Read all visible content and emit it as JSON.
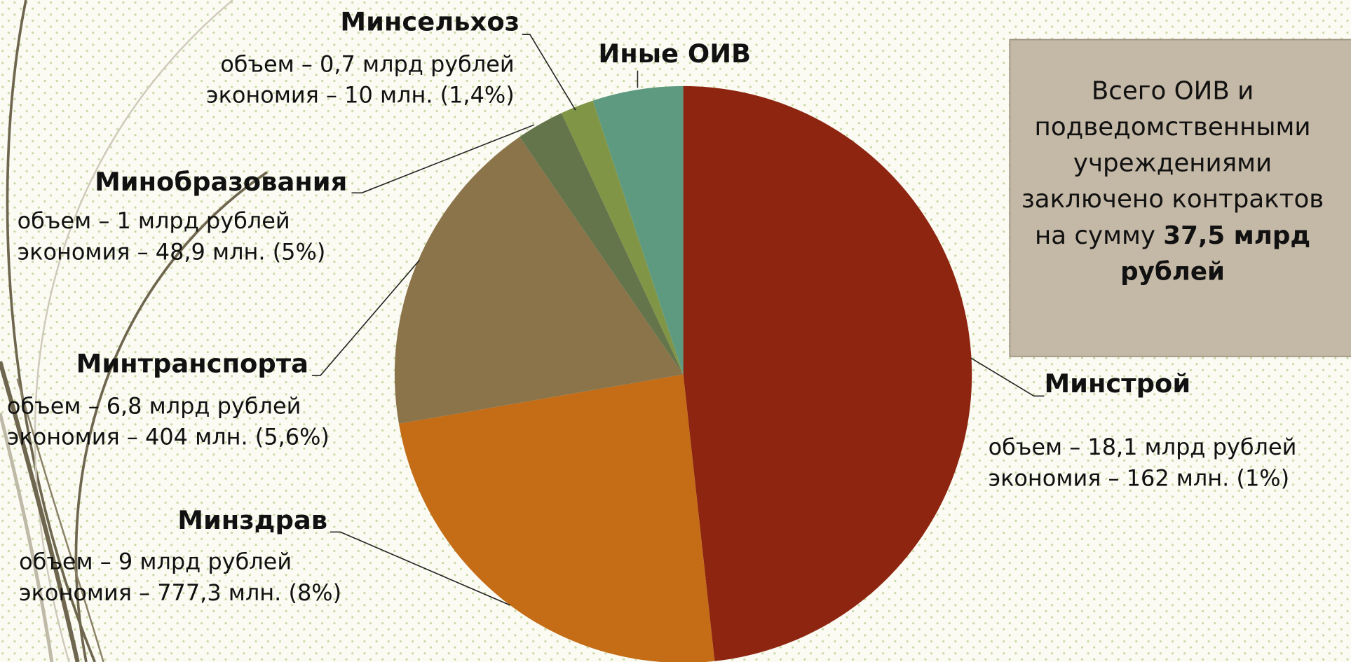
{
  "chart_data": {
    "type": "pie",
    "categories": [
      "Минстрой",
      "Минздрав",
      "Минтранспорта",
      "Минобразования",
      "Минсельхоз",
      "Иные ОИВ"
    ],
    "values": [
      18.1,
      9,
      6.8,
      1,
      0.7,
      1.9
    ],
    "value_labels": [
      "объем – 18,1 млрд рублей",
      "объем – 9 млрд рублей",
      "объем – 6,8 млрд рублей",
      "объем – 1 млрд рублей",
      "объем – 0,7 млрд рублей",
      null
    ],
    "savings_labels": [
      "экономия – 162 млн. (1%)",
      "экономия – 777,3 млн. (8%)",
      "экономия – 404 млн. (5,6%)",
      "экономия – 48,9 млн. (5%)",
      "экономия – 10 млн. (1,4%)",
      null
    ],
    "colors": [
      "#8e2510",
      "#c46c16",
      "#8b744a",
      "#65754b",
      "#819546",
      "#5e9a80"
    ],
    "annotation": {
      "text": "Всего ОИВ и подведомственными учреждениями заключено контрактов на сумму",
      "amount": "37,5 млрд рублей"
    }
  }
}
